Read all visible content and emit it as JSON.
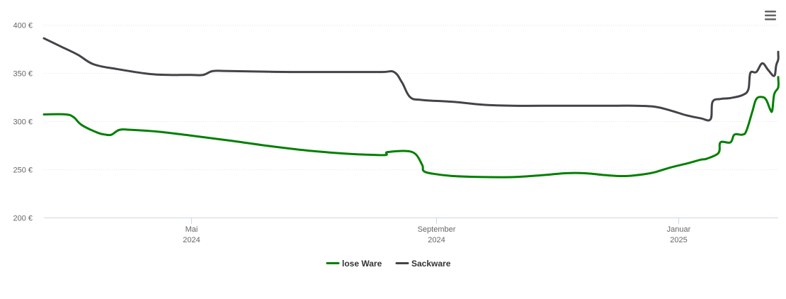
{
  "menu": {
    "icon": "hamburger-menu-icon"
  },
  "chart_data": {
    "type": "line",
    "title": "",
    "xlabel": "",
    "ylabel": "",
    "x_range": [
      "2024-02-17",
      "2025-02-20"
    ],
    "ylim": [
      200,
      400
    ],
    "y_ticks": [
      {
        "value": 200,
        "label": "200 €"
      },
      {
        "value": 250,
        "label": "250 €"
      },
      {
        "value": 300,
        "label": "300 €"
      },
      {
        "value": 350,
        "label": "350 €"
      },
      {
        "value": 400,
        "label": "400 €"
      }
    ],
    "x_ticks": [
      {
        "date": "2024-05-01",
        "month": "Mai",
        "year": "2024"
      },
      {
        "date": "2024-09-01",
        "month": "September",
        "year": "2024"
      },
      {
        "date": "2025-01-01",
        "month": "Januar",
        "year": "2025"
      }
    ],
    "grid": true,
    "legend_position": "bottom-center",
    "series": [
      {
        "name": "lose Ware",
        "color": "#008000",
        "points": [
          [
            "2024-02-17",
            307
          ],
          [
            "2024-02-28",
            307
          ],
          [
            "2024-03-03",
            304
          ],
          [
            "2024-03-07",
            296
          ],
          [
            "2024-03-15",
            288
          ],
          [
            "2024-03-19",
            286
          ],
          [
            "2024-03-22",
            286
          ],
          [
            "2024-03-26",
            291
          ],
          [
            "2024-04-01",
            291
          ],
          [
            "2024-04-15",
            289
          ],
          [
            "2024-05-01",
            285
          ],
          [
            "2024-05-20",
            280
          ],
          [
            "2024-06-10",
            274
          ],
          [
            "2024-07-01",
            269
          ],
          [
            "2024-07-20",
            266
          ],
          [
            "2024-08-01",
            265
          ],
          [
            "2024-08-07",
            265
          ],
          [
            "2024-08-08",
            268
          ],
          [
            "2024-08-20",
            268
          ],
          [
            "2024-08-25",
            255
          ],
          [
            "2024-08-26",
            248
          ],
          [
            "2024-09-01",
            245
          ],
          [
            "2024-09-10",
            243
          ],
          [
            "2024-09-25",
            242
          ],
          [
            "2024-10-10",
            242
          ],
          [
            "2024-10-25",
            244
          ],
          [
            "2024-11-05",
            246
          ],
          [
            "2024-11-15",
            246
          ],
          [
            "2024-11-25",
            244
          ],
          [
            "2024-12-05",
            243
          ],
          [
            "2024-12-15",
            245
          ],
          [
            "2024-12-20",
            247
          ],
          [
            "2024-12-28",
            252
          ],
          [
            "2025-01-05",
            256
          ],
          [
            "2025-01-12",
            260
          ],
          [
            "2025-01-15",
            261
          ],
          [
            "2025-01-21",
            267
          ],
          [
            "2025-01-22",
            278
          ],
          [
            "2025-01-27",
            278
          ],
          [
            "2025-01-29",
            286
          ],
          [
            "2025-02-02",
            286
          ],
          [
            "2025-02-04",
            290
          ],
          [
            "2025-02-07",
            310
          ],
          [
            "2025-02-09",
            323
          ],
          [
            "2025-02-12",
            325
          ],
          [
            "2025-02-14",
            322
          ],
          [
            "2025-02-16",
            312
          ],
          [
            "2025-02-17",
            311
          ],
          [
            "2025-02-18",
            328
          ],
          [
            "2025-02-21",
            335
          ],
          [
            "2025-02-23",
            345
          ],
          [
            "2025-02-29",
            345
          ]
        ]
      },
      {
        "name": "Sackware",
        "color": "#434348",
        "points": [
          [
            "2024-02-17",
            386
          ],
          [
            "2024-02-25",
            378
          ],
          [
            "2024-03-05",
            369
          ],
          [
            "2024-03-13",
            359
          ],
          [
            "2024-03-25",
            354
          ],
          [
            "2024-04-10",
            349
          ],
          [
            "2024-04-20",
            348
          ],
          [
            "2024-05-01",
            348
          ],
          [
            "2024-05-07",
            348
          ],
          [
            "2024-05-12",
            352
          ],
          [
            "2024-05-20",
            352
          ],
          [
            "2024-06-20",
            351
          ],
          [
            "2024-07-20",
            351
          ],
          [
            "2024-08-05",
            351
          ],
          [
            "2024-08-11",
            351
          ],
          [
            "2024-08-15",
            340
          ],
          [
            "2024-08-19",
            325
          ],
          [
            "2024-08-25",
            322
          ],
          [
            "2024-09-10",
            320
          ],
          [
            "2024-09-25",
            317
          ],
          [
            "2024-10-10",
            316
          ],
          [
            "2024-10-31",
            316
          ],
          [
            "2024-11-20",
            316
          ],
          [
            "2024-12-01",
            316
          ],
          [
            "2024-12-10",
            316
          ],
          [
            "2024-12-20",
            315
          ],
          [
            "2024-12-28",
            311
          ],
          [
            "2025-01-05",
            306
          ],
          [
            "2025-01-12",
            303
          ],
          [
            "2025-01-17",
            302
          ],
          [
            "2025-01-18",
            320
          ],
          [
            "2025-01-22",
            323
          ],
          [
            "2025-01-27",
            324
          ],
          [
            "2025-02-02",
            327
          ],
          [
            "2025-02-05",
            333
          ],
          [
            "2025-02-06",
            350
          ],
          [
            "2025-02-09",
            351
          ],
          [
            "2025-02-12",
            360
          ],
          [
            "2025-02-15",
            353
          ],
          [
            "2025-02-18",
            347
          ],
          [
            "2025-02-19",
            358
          ],
          [
            "2025-02-23",
            364
          ],
          [
            "2025-02-24",
            370
          ],
          [
            "2025-02-29",
            372
          ]
        ]
      }
    ]
  }
}
